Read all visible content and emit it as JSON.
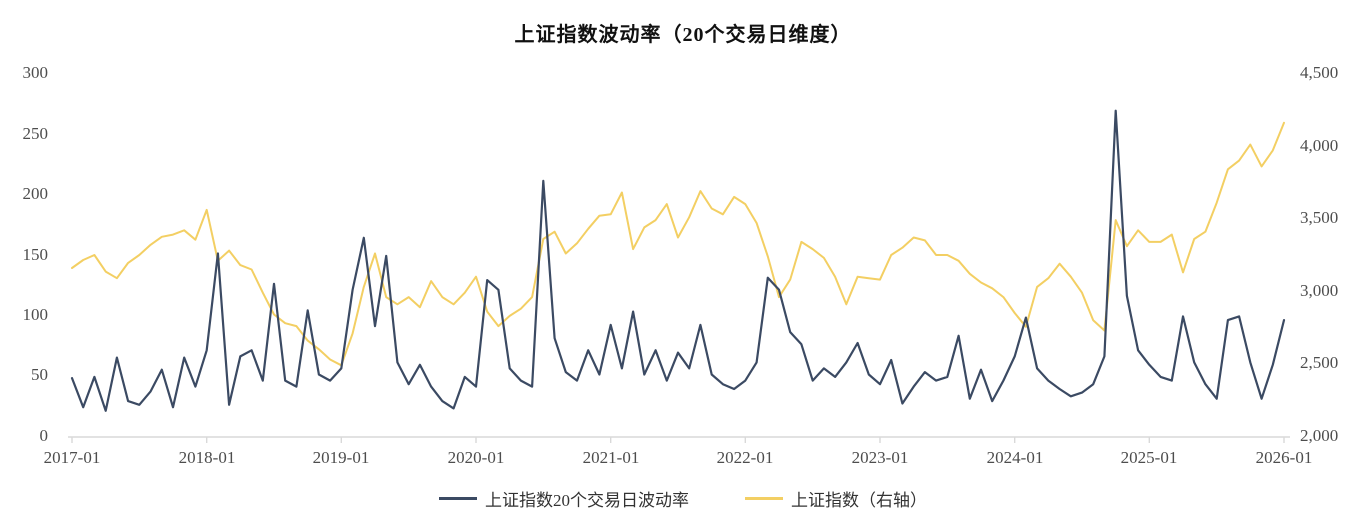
{
  "title": "上证指数波动率（20个交易日维度）",
  "colors": {
    "volatility_line": "#3b4a63",
    "index_line": "#f3cf63",
    "axis_line": "#d9d9d9",
    "tick_text": "#4d4d4d",
    "title_text": "#111111",
    "background": "#ffffff"
  },
  "legend": {
    "items": [
      {
        "label": "上证指数20个交易日波动率",
        "color": "#3b4a63"
      },
      {
        "label": "上证指数（右轴）",
        "color": "#f3cf63"
      }
    ]
  },
  "chart_data": {
    "type": "line",
    "title": "上证指数波动率（20个交易日维度）",
    "x_start": "2017-01",
    "x_end": "2026-01",
    "x_interval": "monthly",
    "x_tick_labels": [
      "2017-01",
      "2018-01",
      "2019-01",
      "2020-01",
      "2021-01",
      "2022-01",
      "2023-01",
      "2024-01",
      "2025-01",
      "2026-01"
    ],
    "left_axis": {
      "min": 0,
      "max": 300,
      "tick_labels": [
        "300",
        "250",
        "200",
        "150",
        "100",
        "50",
        "0"
      ]
    },
    "right_axis": {
      "min": 2000,
      "max": 4500,
      "tick_labels": [
        "4,500",
        "4,000",
        "3,500",
        "3,000",
        "2,500",
        "2,000"
      ]
    },
    "grid": false,
    "legend_position": "bottom",
    "series": [
      {
        "name": "上证指数20个交易日波动率",
        "axis": "left",
        "color": "#3b4a63",
        "values": [
          47,
          23,
          48,
          20,
          64,
          28,
          25,
          36,
          54,
          23,
          64,
          40,
          70,
          150,
          25,
          65,
          70,
          45,
          125,
          45,
          40,
          103,
          50,
          45,
          55,
          120,
          163,
          90,
          148,
          60,
          42,
          58,
          40,
          28,
          22,
          48,
          40,
          128,
          120,
          55,
          45,
          40,
          210,
          80,
          52,
          45,
          70,
          50,
          91,
          55,
          102,
          50,
          70,
          45,
          68,
          55,
          91,
          50,
          42,
          38,
          45,
          60,
          130,
          120,
          85,
          75,
          45,
          55,
          48,
          60,
          76,
          50,
          42,
          62,
          26,
          40,
          52,
          45,
          48,
          82,
          30,
          54,
          28,
          45,
          65,
          97,
          55,
          45,
          38,
          32,
          35,
          42,
          65,
          268,
          115,
          70,
          58,
          48,
          45,
          98,
          60,
          42,
          30,
          95,
          98,
          60,
          30,
          58,
          95
        ]
      },
      {
        "name": "上证指数（右轴）",
        "axis": "right",
        "color": "#f3cf63",
        "values": [
          3150,
          3205,
          3240,
          3125,
          3080,
          3185,
          3240,
          3310,
          3365,
          3380,
          3410,
          3345,
          3550,
          3200,
          3270,
          3170,
          3140,
          2980,
          2830,
          2770,
          2750,
          2650,
          2590,
          2520,
          2480,
          2700,
          3020,
          3250,
          2950,
          2900,
          2950,
          2880,
          3060,
          2950,
          2900,
          2980,
          3090,
          2850,
          2750,
          2820,
          2870,
          2950,
          3350,
          3400,
          3250,
          3320,
          3420,
          3510,
          3520,
          3670,
          3280,
          3430,
          3480,
          3590,
          3360,
          3500,
          3680,
          3560,
          3520,
          3640,
          3590,
          3460,
          3230,
          2950,
          3070,
          3330,
          3280,
          3220,
          3090,
          2900,
          3090,
          3080,
          3070,
          3240,
          3290,
          3360,
          3340,
          3240,
          3240,
          3200,
          3110,
          3050,
          3010,
          2950,
          2840,
          2745,
          3020,
          3080,
          3180,
          3090,
          2980,
          2790,
          2720,
          3480,
          3300,
          3410,
          3330,
          3330,
          3380,
          3120,
          3350,
          3400,
          3600,
          3830,
          3890,
          4000,
          3850,
          3960,
          4150
        ]
      }
    ]
  }
}
